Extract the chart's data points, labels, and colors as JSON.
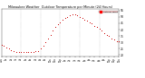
{
  "title": "Milwaukee Weather  Outdoor Temperature per Minute (24 Hours)",
  "bg_color": "#ffffff",
  "plot_bg_color": "#ffffff",
  "dot_color": "#cc0000",
  "grid_color": "#999999",
  "ylim": [
    19,
    56
  ],
  "xlim": [
    0,
    1440
  ],
  "yticks": [
    20,
    25,
    30,
    35,
    40,
    45,
    50,
    55
  ],
  "ytick_labels": [
    "20",
    "25",
    "30",
    "35",
    "40",
    "45",
    "50",
    "55"
  ],
  "legend_text": "Outdoor Temp",
  "legend_color": "#ff0000",
  "time_points": [
    0,
    30,
    60,
    90,
    120,
    150,
    180,
    210,
    240,
    270,
    300,
    330,
    360,
    390,
    420,
    450,
    480,
    510,
    540,
    570,
    600,
    630,
    660,
    690,
    720,
    750,
    780,
    810,
    840,
    870,
    900,
    930,
    960,
    990,
    1020,
    1050,
    1080,
    1110,
    1140,
    1170,
    1200,
    1230,
    1260,
    1290,
    1320,
    1350,
    1380,
    1410,
    1440
  ],
  "temp_points": [
    28,
    27,
    26,
    25,
    24,
    23,
    22,
    22,
    22,
    22,
    22,
    22,
    22,
    22,
    23,
    23,
    25,
    27,
    30,
    33,
    36,
    39,
    42,
    44,
    46,
    48,
    49,
    50,
    51,
    52,
    52,
    51,
    50,
    49,
    48,
    47,
    46,
    45,
    43,
    42,
    41,
    39,
    37,
    36,
    35,
    33,
    32,
    31,
    31
  ],
  "vgrid_positions": [
    240,
    480,
    720,
    960,
    1200
  ],
  "xtick_positions": [
    0,
    60,
    120,
    180,
    240,
    300,
    360,
    420,
    480,
    540,
    600,
    660,
    720,
    780,
    840,
    900,
    960,
    1020,
    1080,
    1140,
    1200,
    1260,
    1320,
    1380,
    1440
  ],
  "xtick_labels": [
    "12a",
    "1a",
    "2a",
    "3a",
    "4a",
    "5a",
    "6a",
    "7a",
    "8a",
    "9a",
    "10a",
    "11a",
    "12p",
    "1p",
    "2p",
    "3p",
    "4p",
    "5p",
    "6p",
    "7p",
    "8p",
    "9p",
    "10p",
    "11p",
    "12a"
  ]
}
